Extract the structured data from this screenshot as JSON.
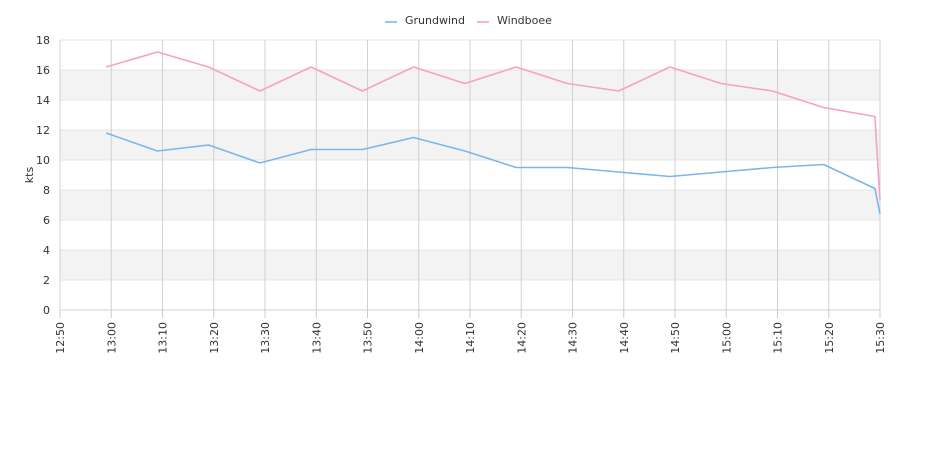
{
  "chart_data": {
    "type": "line",
    "title": "",
    "xlabel": "",
    "ylabel": "kts",
    "x_ticks": [
      "12:50",
      "13:00",
      "13:10",
      "13:20",
      "13:30",
      "13:40",
      "13:50",
      "14:00",
      "14:10",
      "14:20",
      "14:30",
      "14:40",
      "14:50",
      "15:00",
      "15:10",
      "15:20",
      "15:30"
    ],
    "ylim": [
      0,
      18
    ],
    "y_ticks": [
      0,
      2,
      4,
      6,
      8,
      10,
      12,
      14,
      16,
      18
    ],
    "grid": true,
    "legend_position": "top-center",
    "series": [
      {
        "name": "Grundwind",
        "color": "#7cb5ec",
        "x": [
          "12:59",
          "13:09",
          "13:19",
          "13:29",
          "13:39",
          "13:49",
          "13:59",
          "14:09",
          "14:19",
          "14:29",
          "14:39",
          "14:49",
          "14:59",
          "15:09",
          "15:19",
          "15:29",
          "15:30"
        ],
        "values": [
          11.8,
          10.6,
          11.0,
          9.8,
          10.7,
          10.7,
          11.5,
          10.6,
          9.5,
          9.5,
          9.2,
          8.9,
          9.2,
          9.5,
          9.7,
          8.1,
          6.4
        ]
      },
      {
        "name": "Windboee",
        "color": "#f7a1c4",
        "x": [
          "12:59",
          "13:09",
          "13:19",
          "13:29",
          "13:39",
          "13:49",
          "13:59",
          "14:09",
          "14:19",
          "14:29",
          "14:39",
          "14:49",
          "14:59",
          "15:09",
          "15:19",
          "15:29",
          "15:30"
        ],
        "values": [
          16.2,
          17.2,
          16.2,
          14.6,
          16.2,
          14.6,
          16.2,
          15.1,
          16.2,
          15.1,
          14.6,
          16.2,
          15.1,
          14.6,
          13.5,
          12.9,
          7.3
        ]
      }
    ]
  }
}
